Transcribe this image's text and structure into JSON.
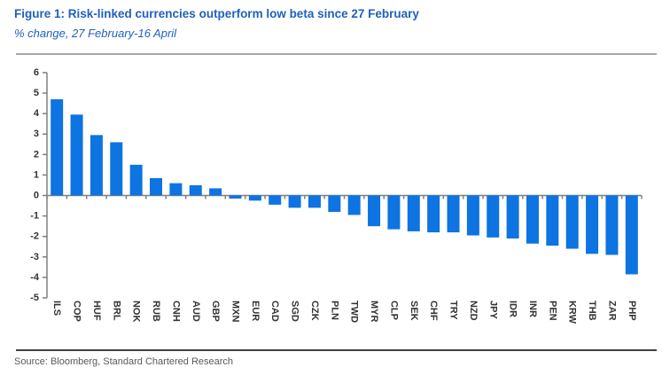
{
  "header": {
    "title": "Figure 1: Risk-linked currencies outperform low beta since 27 February",
    "subtitle": "% change, 27 February-16 April"
  },
  "footer": {
    "source": "Source: Bloomberg, Standard Chartered Research"
  },
  "colors": {
    "bar": "#0d74e1",
    "title_blue": "#2060bf",
    "axis": "#808080",
    "axis_label": "#333333",
    "rule_light": "#a6a6a6",
    "rule_dark": "#404040",
    "source_text": "#595959"
  },
  "chart_data": {
    "type": "bar",
    "title": "Figure 1: Risk-linked currencies outperform low beta since 27 February",
    "subtitle": "% change, 27 February-16 April",
    "source": "Source: Bloomberg, Standard Chartered Research",
    "categories": [
      "ILS",
      "COP",
      "HUF",
      "BRL",
      "NOK",
      "RUB",
      "CNH",
      "AUD",
      "GBP",
      "MXN",
      "EUR",
      "CAD",
      "SGD",
      "CZK",
      "PLN",
      "TWD",
      "MYR",
      "CLP",
      "SEK",
      "CHF",
      "TRY",
      "NZD",
      "JPY",
      "IDR",
      "INR",
      "PEN",
      "KRW",
      "THB",
      "ZAR",
      "PHP"
    ],
    "values": [
      4.7,
      3.95,
      2.95,
      2.6,
      1.5,
      0.85,
      0.6,
      0.5,
      0.35,
      -0.15,
      -0.25,
      -0.45,
      -0.6,
      -0.6,
      -0.8,
      -0.95,
      -1.5,
      -1.65,
      -1.75,
      -1.8,
      -1.8,
      -1.95,
      -2.05,
      -2.1,
      -2.35,
      -2.45,
      -2.6,
      -2.85,
      -2.9,
      -3.85
    ],
    "xlabel": "",
    "ylabel": "",
    "ylim": [
      -5,
      6
    ],
    "ytick_step": 1,
    "grid": false,
    "legend": "none",
    "category_label_rotation_deg": 90
  }
}
